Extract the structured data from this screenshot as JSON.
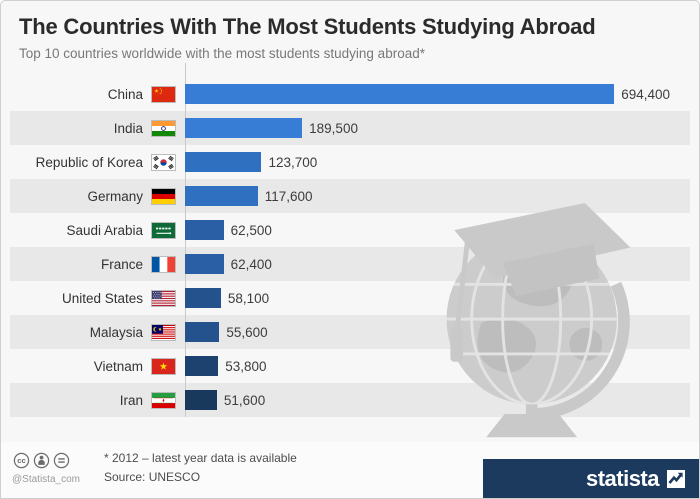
{
  "header": {
    "title": "The Countries With The Most Students Studying Abroad",
    "subtitle": "Top 10 countries worldwide with the most students studying abroad*"
  },
  "chart_data": {
    "type": "bar",
    "orientation": "horizontal",
    "title": "The Countries With The Most Students Studying Abroad",
    "categories": [
      "China",
      "India",
      "Republic of Korea",
      "Germany",
      "Saudi Arabia",
      "France",
      "United States",
      "Malaysia",
      "Vietnam",
      "Iran"
    ],
    "values": [
      694400,
      189500,
      123700,
      117600,
      62500,
      62400,
      58100,
      55600,
      53800,
      51600
    ],
    "value_labels": [
      "694,400",
      "189,500",
      "123,700",
      "117,600",
      "62,500",
      "62,400",
      "58,100",
      "55,600",
      "53,800",
      "51,600"
    ],
    "flags": [
      "china",
      "india",
      "south-korea",
      "germany",
      "saudi-arabia",
      "france",
      "united-states",
      "malaysia",
      "vietnam",
      "iran"
    ],
    "bar_colors": [
      "#377dd5",
      "#377dd5",
      "#3070c1",
      "#3070c1",
      "#2a5fa5",
      "#2a5fa5",
      "#24528d",
      "#24528d",
      "#1d4270",
      "#18395c"
    ],
    "xmax": 694400,
    "row_stripe_color": "#e8e8e8",
    "legend": "none",
    "grid": "off",
    "watermark": "globe-with-graduation-cap"
  },
  "footer": {
    "note": "* 2012 – latest year data is available",
    "source": "Source: UNESCO",
    "handle": "@Statista_com",
    "brand": "statista",
    "brand_color": "#1b3a5e",
    "license_icons": [
      "cc-icon",
      "attribution-icon",
      "no-derivatives-icon"
    ]
  }
}
